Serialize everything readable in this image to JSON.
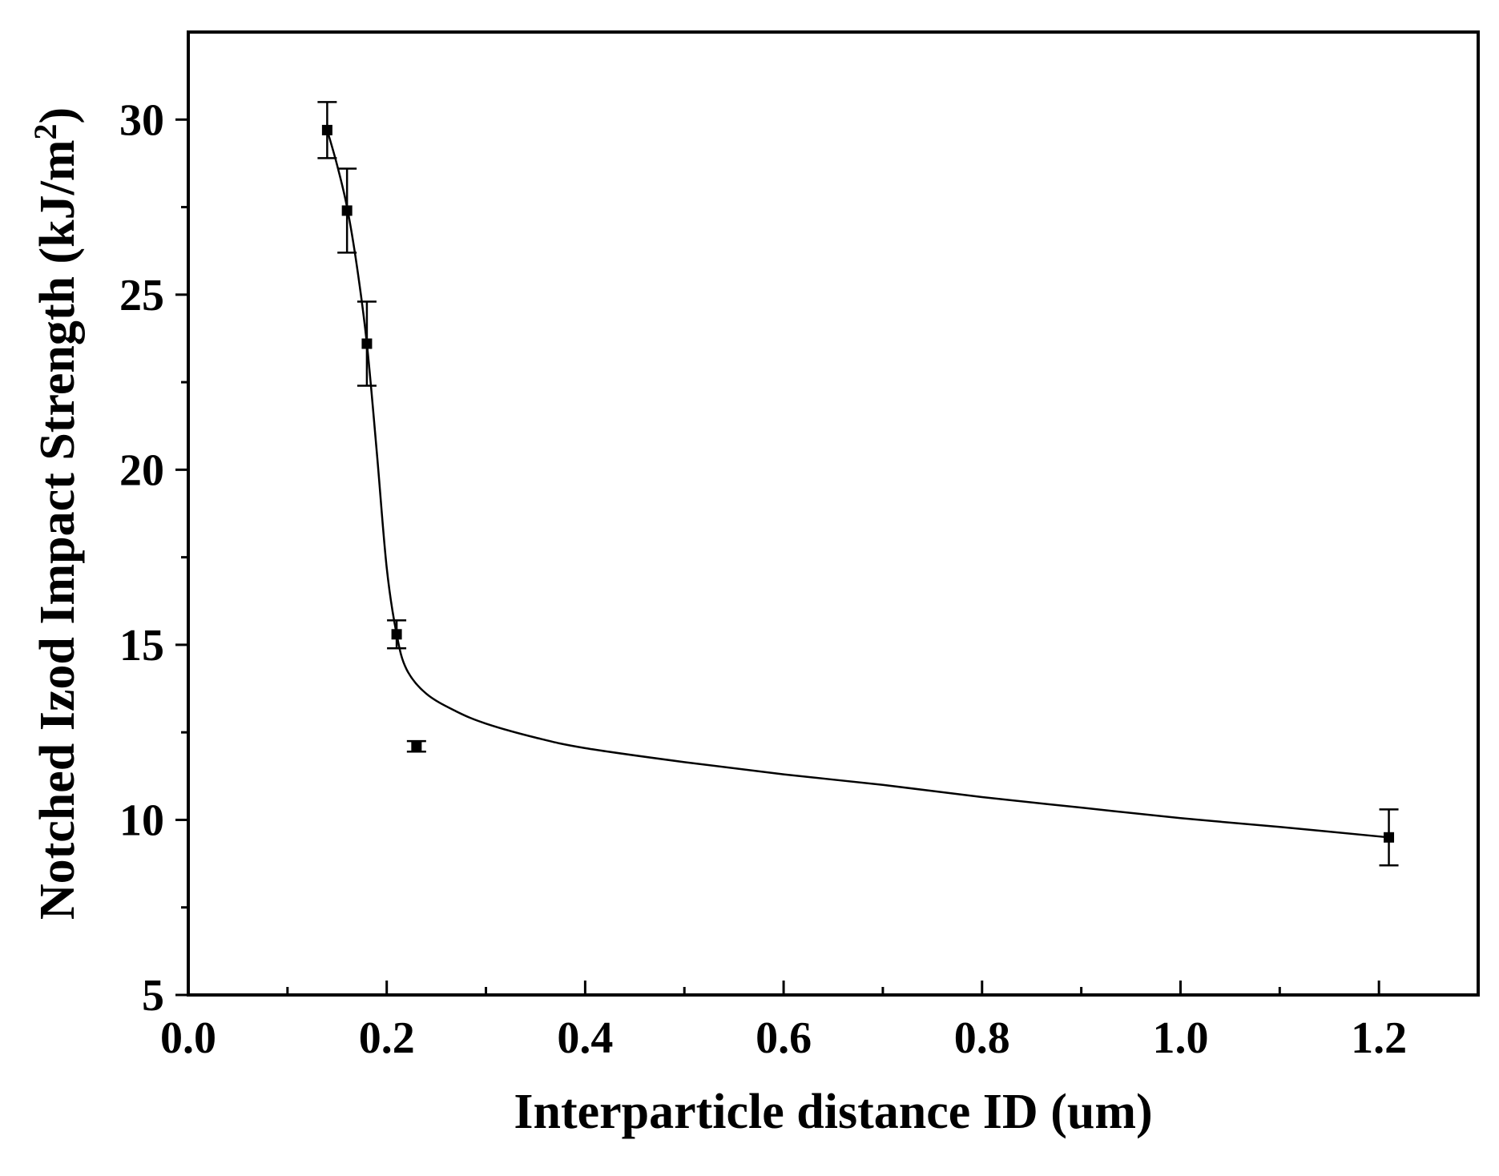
{
  "chart_data": {
    "type": "scatter",
    "xlabel": "Interparticle distance ID (um)",
    "ylabel": {
      "main": "Notched Izod Impact Strength (kJ/m",
      "sup": "2",
      "end": ")"
    },
    "xlim": [
      0.0,
      1.3
    ],
    "ylim": [
      5,
      32.5
    ],
    "x_ticks": [
      {
        "value": 0.0,
        "label": "0.0"
      },
      {
        "value": 0.2,
        "label": "0.2"
      },
      {
        "value": 0.4,
        "label": "0.4"
      },
      {
        "value": 0.6,
        "label": "0.6"
      },
      {
        "value": 0.8,
        "label": "0.8"
      },
      {
        "value": 1.0,
        "label": "1.0"
      },
      {
        "value": 1.2,
        "label": "1.2"
      }
    ],
    "x_minor_ticks": [
      0.1,
      0.3,
      0.5,
      0.7,
      0.9,
      1.1
    ],
    "y_ticks": [
      {
        "value": 5,
        "label": "5"
      },
      {
        "value": 10,
        "label": "10"
      },
      {
        "value": 15,
        "label": "15"
      },
      {
        "value": 20,
        "label": "20"
      },
      {
        "value": 25,
        "label": "25"
      },
      {
        "value": 30,
        "label": "30"
      }
    ],
    "y_minor_ticks": [
      7.5,
      12.5,
      17.5,
      22.5,
      27.5
    ],
    "points": [
      {
        "x": 0.14,
        "y": 29.7,
        "err": 0.8
      },
      {
        "x": 0.16,
        "y": 27.4,
        "err": 1.2
      },
      {
        "x": 0.18,
        "y": 23.6,
        "err": 1.2
      },
      {
        "x": 0.21,
        "y": 15.3,
        "err": 0.4
      },
      {
        "x": 0.23,
        "y": 12.1,
        "err": 0.15
      },
      {
        "x": 1.21,
        "y": 9.5,
        "err": 0.8
      }
    ],
    "fit_curve": [
      [
        0.14,
        29.7
      ],
      [
        0.15,
        28.7
      ],
      [
        0.16,
        27.5
      ],
      [
        0.17,
        25.8
      ],
      [
        0.18,
        23.6
      ],
      [
        0.19,
        20.5
      ],
      [
        0.2,
        17.2
      ],
      [
        0.21,
        15.3
      ],
      [
        0.22,
        14.3
      ],
      [
        0.24,
        13.6
      ],
      [
        0.27,
        13.1
      ],
      [
        0.3,
        12.75
      ],
      [
        0.35,
        12.35
      ],
      [
        0.4,
        12.05
      ],
      [
        0.5,
        11.65
      ],
      [
        0.6,
        11.3
      ],
      [
        0.7,
        11.0
      ],
      [
        0.8,
        10.65
      ],
      [
        0.9,
        10.35
      ],
      [
        1.0,
        10.05
      ],
      [
        1.1,
        9.8
      ],
      [
        1.21,
        9.5
      ]
    ]
  }
}
